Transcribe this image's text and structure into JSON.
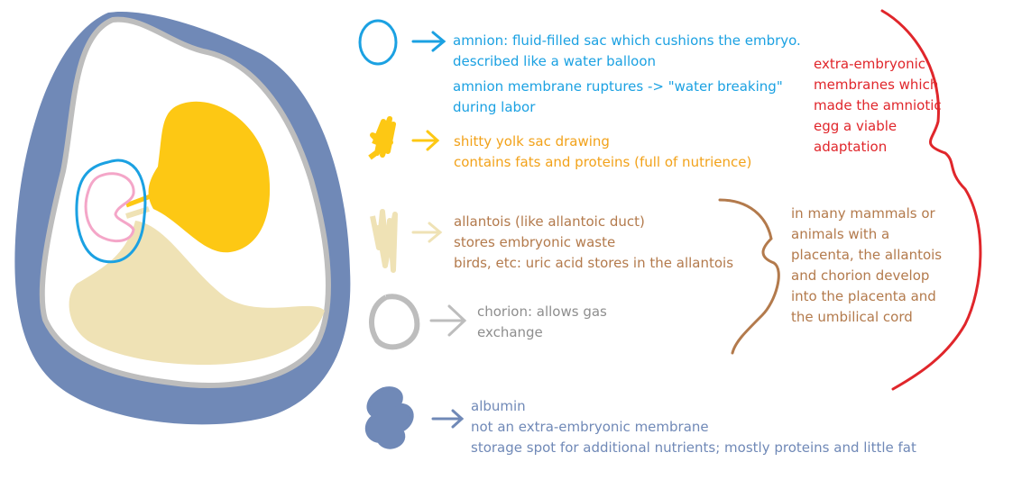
{
  "colors": {
    "blue": "#1ba1e2",
    "orange": "#f2a21a",
    "yolk": "#fdc814",
    "tan": "#e3d19b",
    "brown": "#b37a4c",
    "gray": "#bdbdbd",
    "gray_text": "#8e8e8e",
    "steel": "#7089b7",
    "red": "#e0262b",
    "pink": "#f4a6c8"
  },
  "labels": {
    "amnion": {
      "line1": "amnion: fluid-filled sac which cushions the embryo.",
      "line2": "described like a water balloon",
      "line3": "amnion membrane ruptures -> \"water breaking\"",
      "line4": "during labor"
    },
    "yolk": {
      "line1": "shitty yolk sac drawing",
      "line2": "contains fats and proteins (full of nutrience)"
    },
    "allantois": {
      "line1": "allantois (like allantoic duct)",
      "line2": "stores embryonic waste",
      "line3": "birds, etc: uric acid stores in the allantois"
    },
    "chorion": {
      "line1": "chorion: allows gas",
      "line2": "exchange"
    },
    "albumin": {
      "line1": "albumin",
      "line2": "not an extra-embryonic membrane",
      "line3": "storage spot for additional nutrients; mostly proteins and little fat"
    },
    "extra_embryonic": {
      "line1": "extra-embryonic",
      "line2": "membranes which",
      "line3": "made the amniotic",
      "line4": "egg a viable",
      "line5": "adaptation"
    },
    "placenta": {
      "line1": "in many mammals or",
      "line2": "animals with a",
      "line3": "placenta, the allantois",
      "line4": "and chorion develop",
      "line5": "into the placenta and",
      "line6": "the umbilical cord"
    }
  }
}
